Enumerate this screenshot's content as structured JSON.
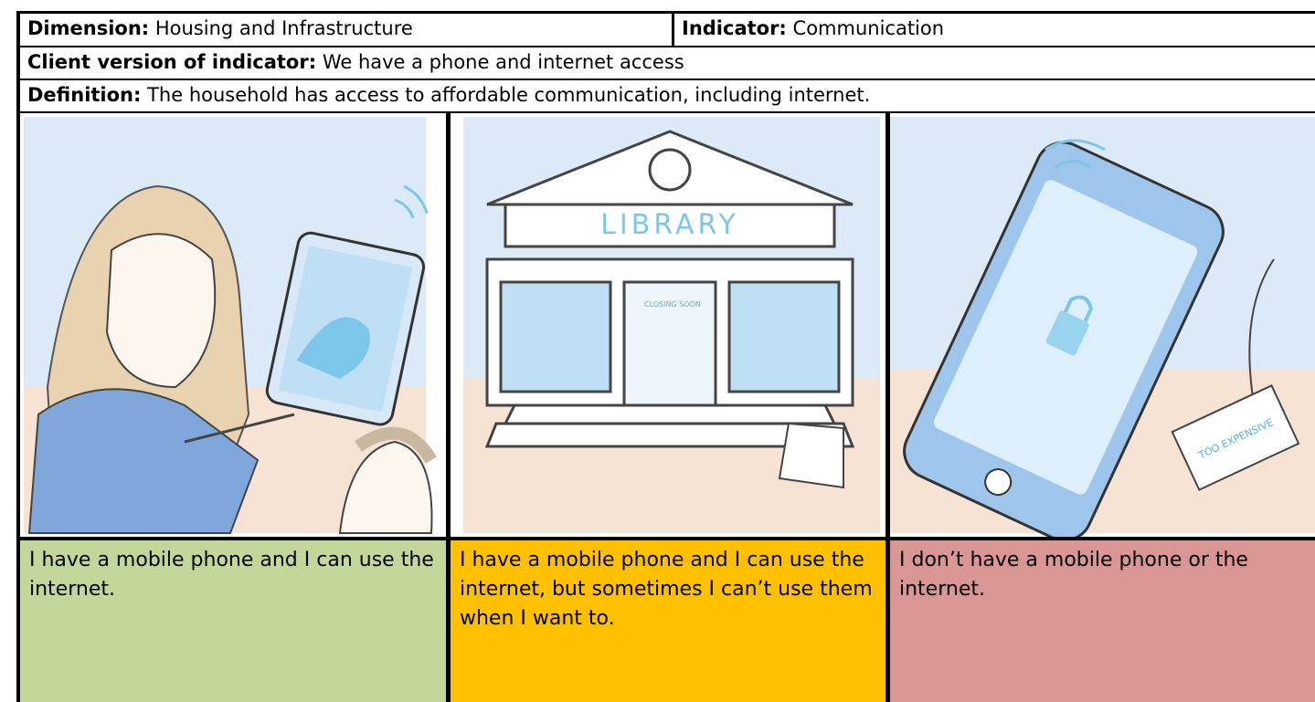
{
  "header": {
    "dimension_label": "Dimension:",
    "dimension": "Housing and Infrastructure",
    "indicator_label": "Indicator:",
    "indicator": "Communication"
  },
  "client_version": {
    "label": "Client version of indicator:",
    "text": "We have a phone and internet access"
  },
  "definition": {
    "label": "Definition:",
    "text": "The household has access to affordable communication, including internet."
  },
  "illustration_texts": {
    "library_sign": "LIBRARY",
    "door_sign": "CLOSING SOON",
    "price_tag": "TOO EXPENSIVE"
  },
  "options": [
    "I have a mobile phone and I can use the internet.",
    "I have a mobile phone and I can use the internet, but sometimes I can’t use them when I want to.",
    "I don’t have a mobile phone or the internet."
  ]
}
